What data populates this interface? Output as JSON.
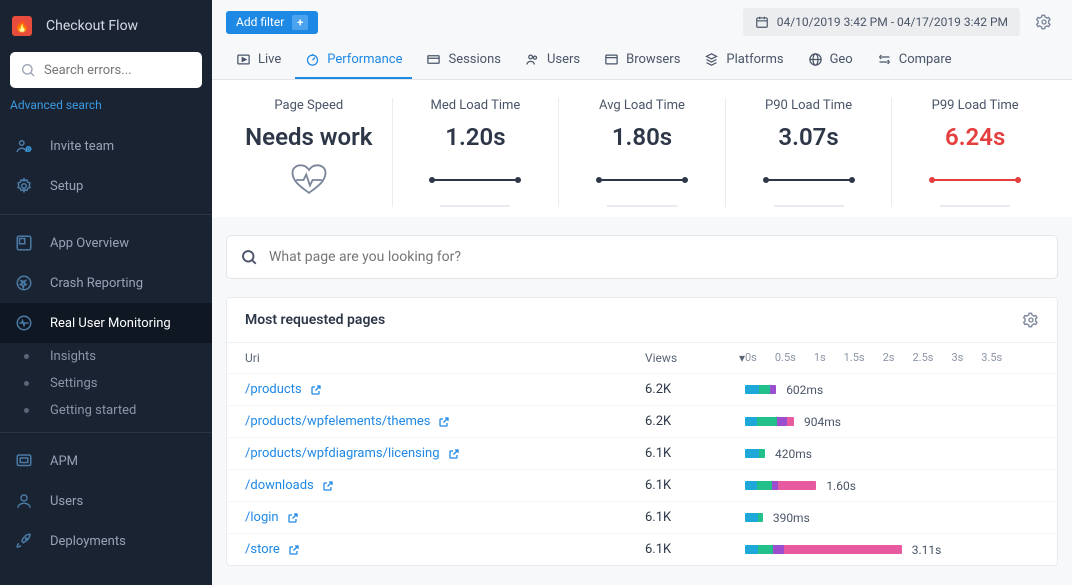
{
  "sidebar": {
    "app_name": "Checkout Flow",
    "search_placeholder": "Search errors...",
    "advanced_search": "Advanced search",
    "items": [
      {
        "label": "Invite team"
      },
      {
        "label": "Setup"
      }
    ],
    "sections": [
      {
        "label": "App Overview"
      },
      {
        "label": "Crash Reporting"
      },
      {
        "label": "Real User Monitoring",
        "active": true
      }
    ],
    "subs": [
      {
        "label": "Insights"
      },
      {
        "label": "Settings"
      },
      {
        "label": "Getting started"
      }
    ],
    "bottom": [
      {
        "label": "APM"
      },
      {
        "label": "Users"
      },
      {
        "label": "Deployments"
      }
    ]
  },
  "topbar": {
    "add_filter": "Add filter",
    "date_range": "04/10/2019 3:42 PM - 04/17/2019 3:42 PM"
  },
  "tabs": [
    {
      "label": "Live"
    },
    {
      "label": "Performance",
      "active": true
    },
    {
      "label": "Sessions"
    },
    {
      "label": "Users"
    },
    {
      "label": "Browsers"
    },
    {
      "label": "Platforms"
    },
    {
      "label": "Geo"
    },
    {
      "label": "Compare"
    }
  ],
  "metrics": [
    {
      "label": "Page Speed",
      "value": "Needs work",
      "type": "heart"
    },
    {
      "label": "Med Load Time",
      "value": "1.20s",
      "type": "spark"
    },
    {
      "label": "Avg Load Time",
      "value": "1.80s",
      "type": "spark"
    },
    {
      "label": "P90 Load Time",
      "value": "3.07s",
      "type": "spark"
    },
    {
      "label": "P99 Load Time",
      "value": "6.24s",
      "type": "spark",
      "red": true
    }
  ],
  "page_search_placeholder": "What page are you looking for?",
  "table": {
    "title": "Most requested pages",
    "col_uri": "Uri",
    "col_views": "Views",
    "axis": [
      "0s",
      "0.5s",
      "1s",
      "1.5s",
      "2s",
      "2.5s",
      "3s",
      "3.5s"
    ],
    "axis_max_ms": 3500,
    "segment_colors": [
      "#1ea8d9",
      "#22c08a",
      "#9b4fcf",
      "#e85aa0"
    ],
    "rows": [
      {
        "uri": "/products",
        "views": "6.2K",
        "time": "602ms",
        "segments_ms": [
          190,
          150,
          80,
          0
        ]
      },
      {
        "uri": "/products/wpfelements/themes",
        "views": "6.2K",
        "time": "904ms",
        "segments_ms": [
          160,
          270,
          140,
          90
        ]
      },
      {
        "uri": "/products/wpfdiagrams/licensing",
        "views": "6.1K",
        "time": "420ms",
        "segments_ms": [
          190,
          80,
          0,
          0
        ]
      },
      {
        "uri": "/downloads",
        "views": "6.1K",
        "time": "1.60s",
        "segments_ms": [
          160,
          200,
          90,
          510
        ]
      },
      {
        "uri": "/login",
        "views": "6.1K",
        "time": "390ms",
        "segments_ms": [
          170,
          70,
          0,
          0
        ]
      },
      {
        "uri": "/store",
        "views": "6.1K",
        "time": "3.11s",
        "segments_ms": [
          180,
          200,
          140,
          1590
        ]
      }
    ]
  },
  "colors": {
    "accent": "#1e88e5",
    "sidebar": "#1a2332",
    "red": "#e53e3e"
  }
}
